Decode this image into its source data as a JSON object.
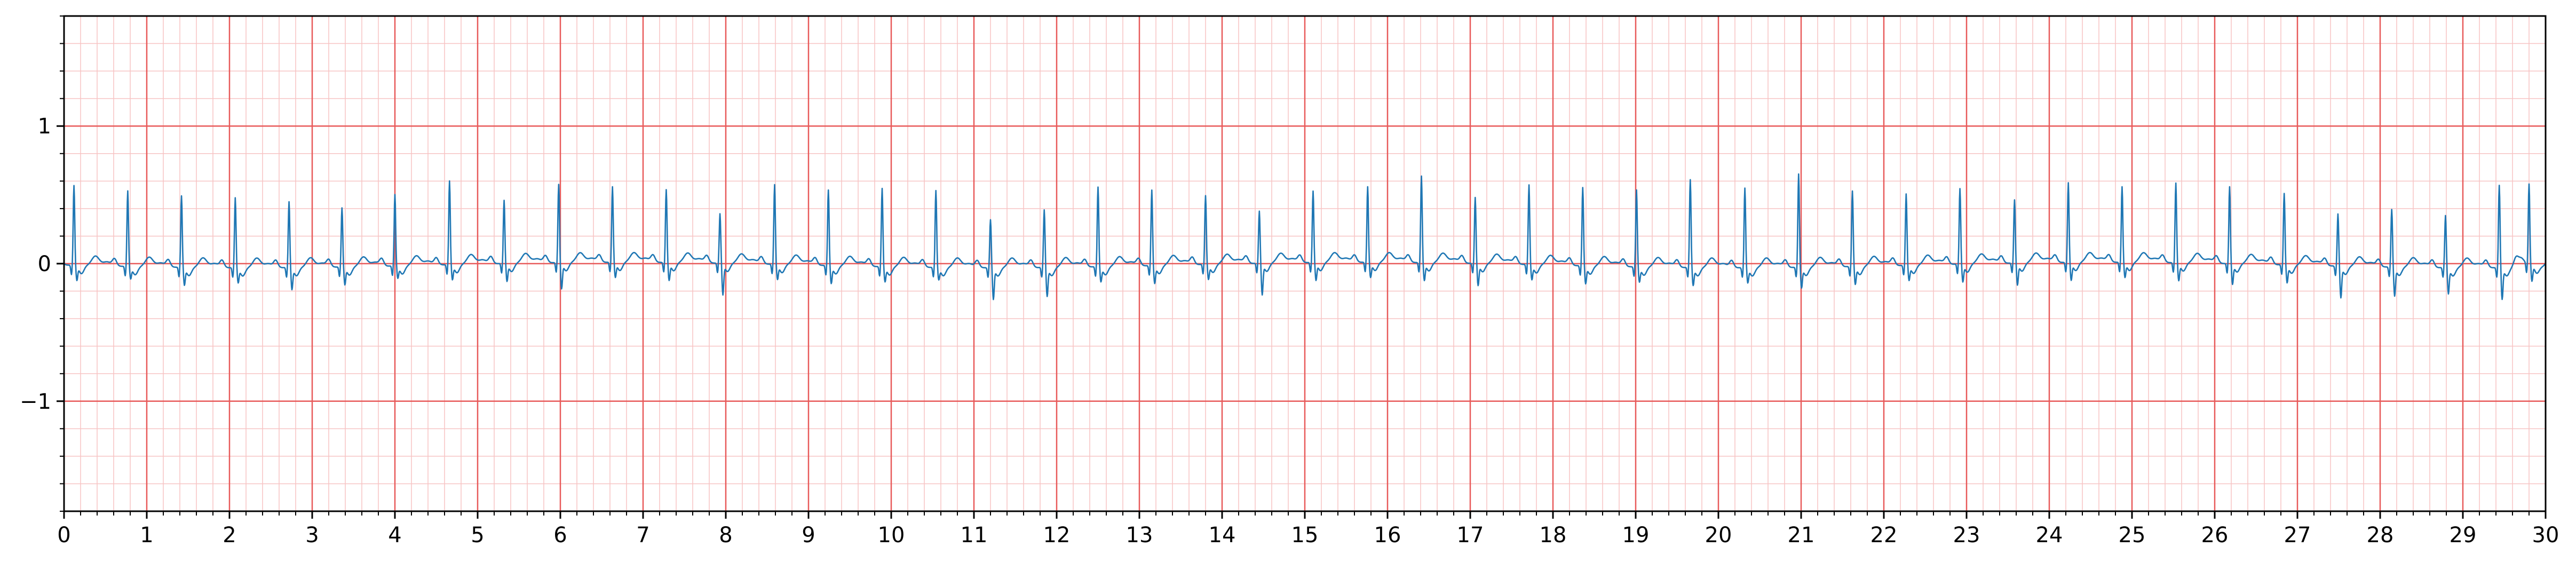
{
  "chart_data": {
    "type": "line",
    "title": "",
    "xlabel": "",
    "ylabel": "",
    "xlim": [
      0,
      30
    ],
    "ylim": [
      -1.8,
      1.8
    ],
    "x_ticks": [
      "0",
      "1",
      "2",
      "3",
      "4",
      "5",
      "6",
      "7",
      "8",
      "9",
      "10",
      "11",
      "12",
      "13",
      "14",
      "15",
      "16",
      "17",
      "18",
      "19",
      "20",
      "21",
      "22",
      "23",
      "24",
      "25",
      "26",
      "27",
      "28",
      "29",
      "30"
    ],
    "y_ticks": [
      {
        "value": 1,
        "label": "1"
      },
      {
        "value": 0,
        "label": "0"
      },
      {
        "value": -1,
        "label": "−1"
      }
    ],
    "grid": {
      "major": true,
      "minor": true,
      "major_color": "#e85a5a",
      "minor_color": "#f7c4c4"
    },
    "series": [
      {
        "color": "#1f77b4",
        "beat_times": [
          0.12,
          0.77,
          1.42,
          2.07,
          2.72,
          3.36,
          4.0,
          4.66,
          5.32,
          5.98,
          6.63,
          7.28,
          7.93,
          8.59,
          9.24,
          9.89,
          10.54,
          11.2,
          11.85,
          12.5,
          13.15,
          13.8,
          14.45,
          15.1,
          15.76,
          16.41,
          17.06,
          17.71,
          18.36,
          19.01,
          19.66,
          20.32,
          20.97,
          21.62,
          22.27,
          22.92,
          23.58,
          24.23,
          24.88,
          25.53,
          26.18,
          26.84,
          27.49,
          28.14,
          28.79,
          29.44,
          29.8
        ],
        "r_peaks": [
          0.58,
          0.55,
          0.52,
          0.51,
          0.48,
          0.43,
          0.52,
          0.61,
          0.46,
          0.57,
          0.55,
          0.53,
          0.36,
          0.58,
          0.55,
          0.57,
          0.56,
          0.35,
          0.42,
          0.58,
          0.55,
          0.5,
          0.38,
          0.52,
          0.55,
          0.63,
          0.48,
          0.58,
          0.57,
          0.56,
          0.64,
          0.58,
          0.68,
          0.55,
          0.52,
          0.55,
          0.46,
          0.58,
          0.55,
          0.58,
          0.56,
          0.52,
          0.38,
          0.42,
          0.38,
          0.6,
          0.58
        ],
        "s_troughs": [
          -0.1,
          -0.08,
          -0.12,
          -0.1,
          -0.15,
          -0.12,
          -0.08,
          -0.1,
          -0.12,
          -0.18,
          -0.1,
          -0.12,
          -0.22,
          -0.1,
          -0.12,
          -0.1,
          -0.08,
          -0.22,
          -0.2,
          -0.1,
          -0.12,
          -0.1,
          -0.22,
          -0.12,
          -0.1,
          -0.12,
          -0.15,
          -0.1,
          -0.12,
          -0.1,
          -0.12,
          -0.1,
          -0.14,
          -0.12,
          -0.1,
          -0.12,
          -0.15,
          -0.12,
          -0.1,
          -0.12,
          -0.14,
          -0.12,
          -0.22,
          -0.2,
          -0.18,
          -0.22,
          -0.12
        ]
      }
    ]
  }
}
